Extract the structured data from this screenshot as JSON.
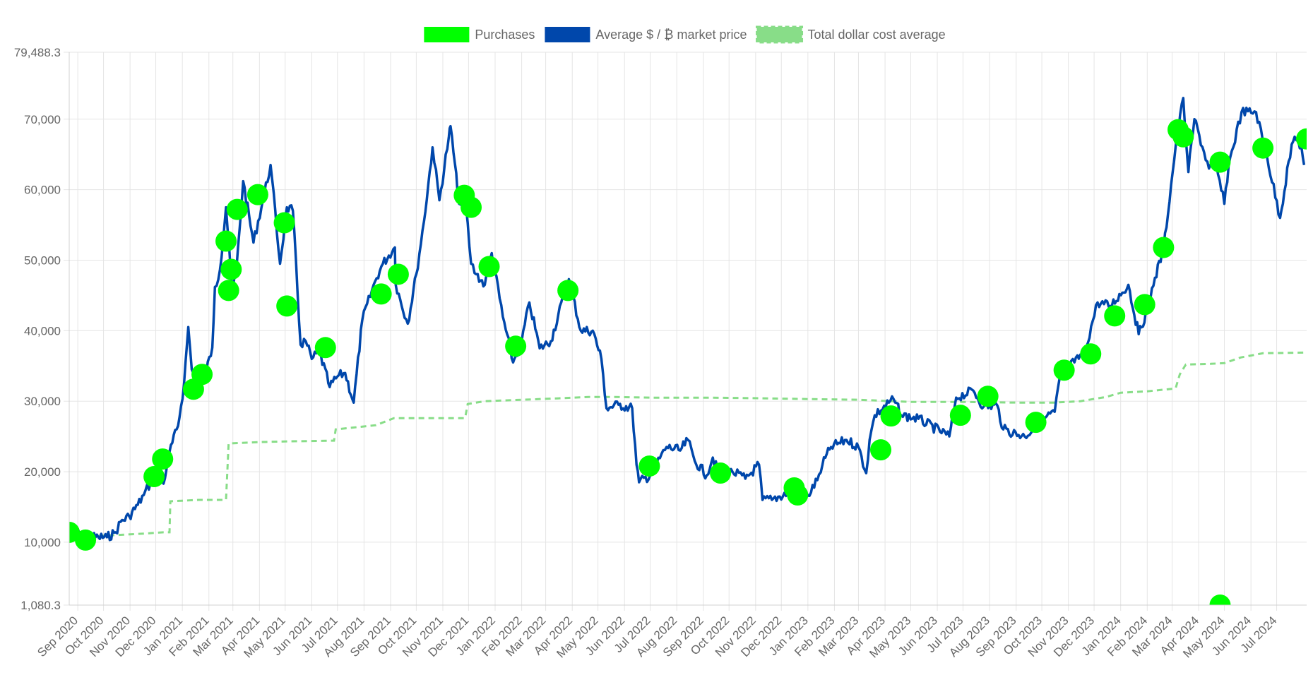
{
  "chart_data": {
    "type": "line",
    "legend": {
      "position": "top-center",
      "entries": [
        {
          "name": "Purchases",
          "color": "#00ff00",
          "style": "point"
        },
        {
          "name": "Average $ / ₿ market price",
          "color": "#0047ab",
          "style": "solid"
        },
        {
          "name": "Total dollar cost average",
          "color": "#88dd88",
          "style": "dashed"
        }
      ]
    },
    "x_axis": {
      "type": "time",
      "range": [
        "2020-08-22",
        "2024-08-05"
      ],
      "tick_labels": [
        "Sep 2020",
        "Oct 2020",
        "Nov 2020",
        "Dec 2020",
        "Jan 2021",
        "Feb 2021",
        "Mar 2021",
        "Apr 2021",
        "May 2021",
        "Jun 2021",
        "Jul 2021",
        "Aug 2021",
        "Sep 2021",
        "Oct 2021",
        "Nov 2021",
        "Dec 2021",
        "Jan 2022",
        "Feb 2022",
        "Mar 2022",
        "Apr 2022",
        "May 2022",
        "Jun 2022",
        "Jul 2022",
        "Aug 2022",
        "Sep 2022",
        "Oct 2022",
        "Nov 2022",
        "Dec 2022",
        "Jan 2023",
        "Feb 2023",
        "Mar 2023",
        "Apr 2023",
        "May 2023",
        "Jun 2023",
        "Jul 2023",
        "Aug 2023",
        "Sep 2023",
        "Oct 2023",
        "Nov 2023",
        "Dec 2023",
        "Jan 2024",
        "Feb 2024",
        "Mar 2024",
        "Apr 2024",
        "May 2024",
        "Jun 2024",
        "Jul 2024"
      ],
      "grid": true
    },
    "y_axis": {
      "range": [
        1080.3,
        79488.3
      ],
      "tick_values": [
        1080.3,
        10000,
        20000,
        30000,
        40000,
        50000,
        60000,
        70000,
        79488.3
      ],
      "tick_labels": [
        "1,080.3",
        "10,000",
        "20,000",
        "30,000",
        "40,000",
        "50,000",
        "60,000",
        "70,000",
        "79,488.3"
      ],
      "grid": true
    },
    "series": [
      {
        "name": "Average $ / ₿ market price",
        "color": "#0047ab",
        "style": "solid",
        "points": [
          [
            "2020-08-22",
            11600
          ],
          [
            "2020-09-01",
            11900
          ],
          [
            "2020-09-06",
            10300
          ],
          [
            "2020-09-15",
            10700
          ],
          [
            "2020-09-25",
            10700
          ],
          [
            "2020-10-05",
            10700
          ],
          [
            "2020-10-15",
            11400
          ],
          [
            "2020-10-21",
            12900
          ],
          [
            "2020-10-31",
            13700
          ],
          [
            "2020-11-10",
            15300
          ],
          [
            "2020-11-17",
            16700
          ],
          [
            "2020-11-25",
            18500
          ],
          [
            "2020-12-01",
            19200
          ],
          [
            "2020-12-10",
            18300
          ],
          [
            "2020-12-17",
            22800
          ],
          [
            "2020-12-27",
            26500
          ],
          [
            "2021-01-03",
            32500
          ],
          [
            "2021-01-08",
            40500
          ],
          [
            "2021-01-12",
            34500
          ],
          [
            "2021-01-21",
            31500
          ],
          [
            "2021-01-29",
            34300
          ],
          [
            "2021-02-05",
            37600
          ],
          [
            "2021-02-08",
            46200
          ],
          [
            "2021-02-14",
            48700
          ],
          [
            "2021-02-21",
            57500
          ],
          [
            "2021-02-28",
            45500
          ],
          [
            "2021-03-05",
            48500
          ],
          [
            "2021-03-13",
            61200
          ],
          [
            "2021-03-25",
            52500
          ],
          [
            "2021-04-05",
            58500
          ],
          [
            "2021-04-14",
            63500
          ],
          [
            "2021-04-25",
            49500
          ],
          [
            "2021-05-03",
            57500
          ],
          [
            "2021-05-10",
            57000
          ],
          [
            "2021-05-19",
            38000
          ],
          [
            "2021-05-25",
            38500
          ],
          [
            "2021-06-01",
            36000
          ],
          [
            "2021-06-10",
            37000
          ],
          [
            "2021-06-22",
            32000
          ],
          [
            "2021-07-01",
            33500
          ],
          [
            "2021-07-10",
            34000
          ],
          [
            "2021-07-20",
            29800
          ],
          [
            "2021-07-30",
            41500
          ],
          [
            "2021-08-14",
            47000
          ],
          [
            "2021-08-23",
            49500
          ],
          [
            "2021-09-06",
            51800
          ],
          [
            "2021-09-07",
            46500
          ],
          [
            "2021-09-21",
            41000
          ],
          [
            "2021-10-01",
            48000
          ],
          [
            "2021-10-10",
            55500
          ],
          [
            "2021-10-20",
            66000
          ],
          [
            "2021-10-28",
            58500
          ],
          [
            "2021-11-08",
            67500
          ],
          [
            "2021-11-10",
            69000
          ],
          [
            "2021-11-20",
            58000
          ],
          [
            "2021-11-28",
            57500
          ],
          [
            "2021-12-04",
            49500
          ],
          [
            "2021-12-10",
            48000
          ],
          [
            "2021-12-20",
            46500
          ],
          [
            "2021-12-28",
            51000
          ],
          [
            "2022-01-10",
            42000
          ],
          [
            "2022-01-22",
            35500
          ],
          [
            "2022-02-01",
            38500
          ],
          [
            "2022-02-10",
            44000
          ],
          [
            "2022-02-22",
            37500
          ],
          [
            "2022-03-07",
            38500
          ],
          [
            "2022-03-28",
            47300
          ],
          [
            "2022-04-11",
            40000
          ],
          [
            "2022-04-25",
            40000
          ],
          [
            "2022-05-05",
            36000
          ],
          [
            "2022-05-11",
            29000
          ],
          [
            "2022-05-25",
            29500
          ],
          [
            "2022-06-10",
            29000
          ],
          [
            "2022-06-15",
            21000
          ],
          [
            "2022-06-18",
            18500
          ],
          [
            "2022-07-01",
            19500
          ],
          [
            "2022-07-20",
            23500
          ],
          [
            "2022-08-05",
            23000
          ],
          [
            "2022-08-14",
            24500
          ],
          [
            "2022-08-22",
            21500
          ],
          [
            "2022-09-05",
            19500
          ],
          [
            "2022-09-12",
            22000
          ],
          [
            "2022-09-21",
            19000
          ],
          [
            "2022-10-05",
            20000
          ],
          [
            "2022-10-20",
            19000
          ],
          [
            "2022-11-05",
            21000
          ],
          [
            "2022-11-09",
            16000
          ],
          [
            "2022-11-20",
            16000
          ],
          [
            "2022-12-10",
            17100
          ],
          [
            "2022-12-20",
            16700
          ],
          [
            "2023-01-01",
            16600
          ],
          [
            "2023-01-12",
            18800
          ],
          [
            "2023-01-18",
            21000
          ],
          [
            "2023-01-28",
            23500
          ],
          [
            "2023-02-15",
            24500
          ],
          [
            "2023-03-01",
            23500
          ],
          [
            "2023-03-10",
            19800
          ],
          [
            "2023-03-14",
            24500
          ],
          [
            "2023-03-20",
            28000
          ],
          [
            "2023-04-11",
            30300
          ],
          [
            "2023-04-20",
            28000
          ],
          [
            "2023-05-10",
            27500
          ],
          [
            "2023-06-15",
            25000
          ],
          [
            "2023-06-23",
            30500
          ],
          [
            "2023-07-13",
            31500
          ],
          [
            "2023-07-25",
            29200
          ],
          [
            "2023-08-10",
            29400
          ],
          [
            "2023-08-17",
            26000
          ],
          [
            "2023-09-11",
            25000
          ],
          [
            "2023-09-28",
            27000
          ],
          [
            "2023-10-16",
            28500
          ],
          [
            "2023-10-24",
            34500
          ],
          [
            "2023-11-08",
            35500
          ],
          [
            "2023-11-20",
            37000
          ],
          [
            "2023-12-05",
            44000
          ],
          [
            "2023-12-20",
            43500
          ],
          [
            "2024-01-10",
            46500
          ],
          [
            "2024-01-22",
            39500
          ],
          [
            "2024-02-01",
            43000
          ],
          [
            "2024-02-10",
            47500
          ],
          [
            "2024-02-20",
            51500
          ],
          [
            "2024-03-05",
            66000
          ],
          [
            "2024-03-14",
            73000
          ],
          [
            "2024-03-20",
            62500
          ],
          [
            "2024-03-27",
            70000
          ],
          [
            "2024-04-13",
            63000
          ],
          [
            "2024-04-20",
            64000
          ],
          [
            "2024-05-01",
            58000
          ],
          [
            "2024-05-06",
            63500
          ],
          [
            "2024-05-21",
            71000
          ],
          [
            "2024-06-07",
            71000
          ],
          [
            "2024-06-20",
            64500
          ],
          [
            "2024-07-05",
            56000
          ],
          [
            "2024-07-15",
            64000
          ],
          [
            "2024-07-22",
            67500
          ],
          [
            "2024-07-30",
            66000
          ],
          [
            "2024-08-02",
            63500
          ]
        ]
      },
      {
        "name": "Total dollar cost average",
        "color": "#88dd88",
        "style": "dashed",
        "points": [
          [
            "2020-08-22",
            11000
          ],
          [
            "2020-09-06",
            10800
          ],
          [
            "2020-10-15",
            11000
          ],
          [
            "2020-11-15",
            11200
          ],
          [
            "2020-12-10",
            11400
          ],
          [
            "2020-12-17",
            11400
          ],
          [
            "2020-12-18",
            15800
          ],
          [
            "2021-01-20",
            16000
          ],
          [
            "2021-02-21",
            16000
          ],
          [
            "2021-02-24",
            24000
          ],
          [
            "2021-04-01",
            24200
          ],
          [
            "2021-05-05",
            24300
          ],
          [
            "2021-06-27",
            24400
          ],
          [
            "2021-06-29",
            26000
          ],
          [
            "2021-08-15",
            26600
          ],
          [
            "2021-09-05",
            27600
          ],
          [
            "2021-10-15",
            27600
          ],
          [
            "2021-11-27",
            27600
          ],
          [
            "2021-11-30",
            29600
          ],
          [
            "2021-12-20",
            30000
          ],
          [
            "2022-02-01",
            30200
          ],
          [
            "2022-03-15",
            30400
          ],
          [
            "2022-04-20",
            30600
          ],
          [
            "2022-05-20",
            30600
          ],
          [
            "2022-07-01",
            30500
          ],
          [
            "2022-09-10",
            30500
          ],
          [
            "2022-11-15",
            30400
          ],
          [
            "2023-01-01",
            30300
          ],
          [
            "2023-03-01",
            30200
          ],
          [
            "2023-05-01",
            29900
          ],
          [
            "2023-07-01",
            29900
          ],
          [
            "2023-09-01",
            29800
          ],
          [
            "2023-10-15",
            29800
          ],
          [
            "2023-11-15",
            30000
          ],
          [
            "2023-12-15",
            30600
          ],
          [
            "2024-01-01",
            31200
          ],
          [
            "2024-02-01",
            31400
          ],
          [
            "2024-03-05",
            31800
          ],
          [
            "2024-03-10",
            33800
          ],
          [
            "2024-03-17",
            35200
          ],
          [
            "2024-04-15",
            35300
          ],
          [
            "2024-05-01",
            35400
          ],
          [
            "2024-05-20",
            36200
          ],
          [
            "2024-06-15",
            36800
          ],
          [
            "2024-08-05",
            36900
          ]
        ]
      },
      {
        "name": "Purchases",
        "color": "#00ff00",
        "style": "point",
        "points": [
          [
            "2020-08-22",
            11400
          ],
          [
            "2020-09-10",
            10300
          ],
          [
            "2020-11-29",
            19300
          ],
          [
            "2020-12-09",
            21800
          ],
          [
            "2021-01-14",
            31700
          ],
          [
            "2021-01-24",
            33800
          ],
          [
            "2021-02-21",
            52700
          ],
          [
            "2021-02-24",
            45700
          ],
          [
            "2021-02-27",
            48700
          ],
          [
            "2021-03-06",
            57200
          ],
          [
            "2021-03-30",
            59300
          ],
          [
            "2021-04-30",
            55300
          ],
          [
            "2021-05-03",
            43500
          ],
          [
            "2021-06-17",
            37600
          ],
          [
            "2021-08-21",
            45200
          ],
          [
            "2021-09-10",
            48000
          ],
          [
            "2021-11-26",
            59200
          ],
          [
            "2021-12-04",
            57500
          ],
          [
            "2021-12-25",
            49100
          ],
          [
            "2022-01-25",
            37800
          ],
          [
            "2022-03-27",
            45700
          ],
          [
            "2022-06-30",
            20800
          ],
          [
            "2022-09-21",
            19800
          ],
          [
            "2022-12-16",
            17700
          ],
          [
            "2022-12-20",
            16700
          ],
          [
            "2023-03-27",
            23100
          ],
          [
            "2023-04-08",
            27900
          ],
          [
            "2023-06-28",
            28000
          ],
          [
            "2023-07-30",
            30700
          ],
          [
            "2023-09-24",
            27000
          ],
          [
            "2023-10-27",
            34400
          ],
          [
            "2023-11-27",
            36700
          ],
          [
            "2023-12-25",
            42100
          ],
          [
            "2024-01-29",
            43700
          ],
          [
            "2024-02-20",
            51800
          ],
          [
            "2024-03-08",
            68500
          ],
          [
            "2024-03-14",
            67500
          ],
          [
            "2024-04-26",
            63900
          ],
          [
            "2024-04-26",
            1080.3
          ],
          [
            "2024-06-15",
            65900
          ],
          [
            "2024-08-05",
            67200
          ]
        ]
      }
    ]
  }
}
